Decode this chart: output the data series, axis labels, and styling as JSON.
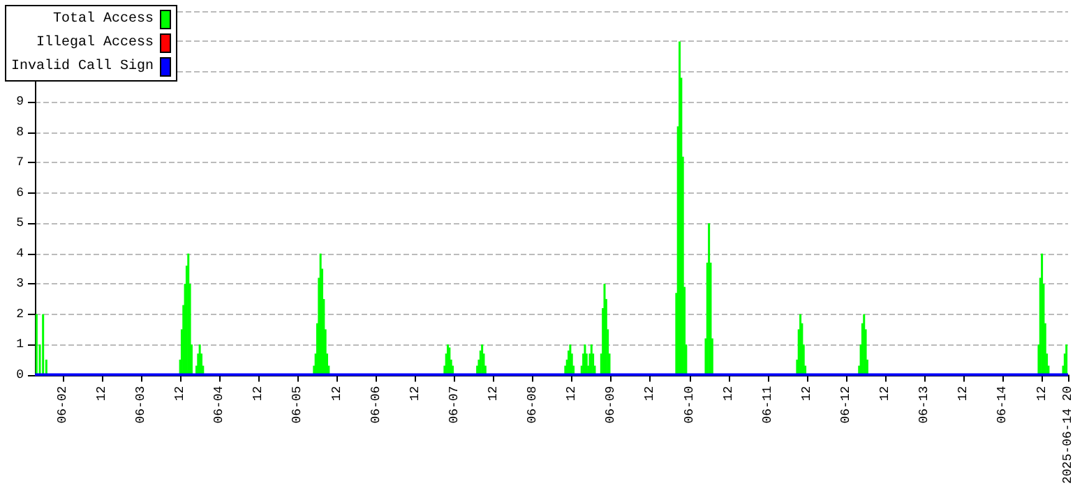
{
  "chart_data": {
    "type": "bar",
    "legend": "top left",
    "grid": "y",
    "marker": "none",
    "xlim": [
      "2025-06-01T15:30",
      "2025-06-14T20:00"
    ],
    "xticks": [
      {
        "value": "2025-06-02T00:00",
        "label": "06-02"
      },
      {
        "value": "2025-06-02T12:00",
        "label": "12"
      },
      {
        "value": "2025-06-03T00:00",
        "label": "06-03"
      },
      {
        "value": "2025-06-03T12:00",
        "label": "12"
      },
      {
        "value": "2025-06-04T00:00",
        "label": "06-04"
      },
      {
        "value": "2025-06-04T12:00",
        "label": "12"
      },
      {
        "value": "2025-06-05T00:00",
        "label": "06-05"
      },
      {
        "value": "2025-06-05T12:00",
        "label": "12"
      },
      {
        "value": "2025-06-06T00:00",
        "label": "06-06"
      },
      {
        "value": "2025-06-06T12:00",
        "label": "12"
      },
      {
        "value": "2025-06-07T00:00",
        "label": "06-07"
      },
      {
        "value": "2025-06-07T12:00",
        "label": "12"
      },
      {
        "value": "2025-06-08T00:00",
        "label": "06-08"
      },
      {
        "value": "2025-06-08T12:00",
        "label": "12"
      },
      {
        "value": "2025-06-09T00:00",
        "label": "06-09"
      },
      {
        "value": "2025-06-09T12:00",
        "label": "12"
      },
      {
        "value": "2025-06-10T00:00",
        "label": "06-10"
      },
      {
        "value": "2025-06-10T12:00",
        "label": "12"
      },
      {
        "value": "2025-06-11T00:00",
        "label": "06-11"
      },
      {
        "value": "2025-06-11T12:00",
        "label": "12"
      },
      {
        "value": "2025-06-12T00:00",
        "label": "06-12"
      },
      {
        "value": "2025-06-12T12:00",
        "label": "12"
      },
      {
        "value": "2025-06-13T00:00",
        "label": "06-13"
      },
      {
        "value": "2025-06-13T12:00",
        "label": "12"
      },
      {
        "value": "2025-06-14T00:00",
        "label": "06-14"
      },
      {
        "value": "2025-06-14T12:00",
        "label": "12"
      },
      {
        "value": "2025-06-14T20:00",
        "label": "2025-06-14 20"
      }
    ],
    "ylim": [
      0,
      12
    ],
    "yticks": [
      0,
      1,
      2,
      3,
      4,
      5,
      6,
      7,
      8,
      9,
      {
        "value": 10,
        "label": null
      },
      {
        "value": 11,
        "label": null
      },
      {
        "value": 12,
        "label": null
      }
    ],
    "series": [
      {
        "name": "Total Access",
        "color": "#00ff00",
        "x": [
          "2025-06-01T16:00",
          "2025-06-01T17:00",
          "2025-06-01T18:00",
          "2025-06-01T19:00",
          "2025-06-03T12:00",
          "2025-06-03T12:30",
          "2025-06-03T13:00",
          "2025-06-03T13:30",
          "2025-06-03T14:00",
          "2025-06-03T14:30",
          "2025-06-03T15:00",
          "2025-06-03T15:30",
          "2025-06-03T17:00",
          "2025-06-03T17:30",
          "2025-06-03T18:00",
          "2025-06-03T18:30",
          "2025-06-03T19:00",
          "2025-06-05T05:00",
          "2025-06-05T05:30",
          "2025-06-05T06:00",
          "2025-06-05T06:30",
          "2025-06-05T07:00",
          "2025-06-05T07:30",
          "2025-06-05T08:00",
          "2025-06-05T08:30",
          "2025-06-05T09:00",
          "2025-06-05T09:30",
          "2025-06-06T21:00",
          "2025-06-06T21:30",
          "2025-06-06T22:00",
          "2025-06-06T22:30",
          "2025-06-06T23:00",
          "2025-06-06T23:30",
          "2025-06-07T07:00",
          "2025-06-07T07:30",
          "2025-06-07T08:00",
          "2025-06-07T08:30",
          "2025-06-07T09:00",
          "2025-06-07T09:30",
          "2025-06-08T10:00",
          "2025-06-08T10:30",
          "2025-06-08T11:00",
          "2025-06-08T11:30",
          "2025-06-08T12:00",
          "2025-06-08T12:30",
          "2025-06-08T15:00",
          "2025-06-08T15:30",
          "2025-06-08T16:00",
          "2025-06-08T16:30",
          "2025-06-08T17:00",
          "2025-06-08T17:30",
          "2025-06-08T18:00",
          "2025-06-08T18:30",
          "2025-06-08T19:00",
          "2025-06-08T21:00",
          "2025-06-08T21:30",
          "2025-06-08T22:00",
          "2025-06-08T22:30",
          "2025-06-08T23:00",
          "2025-06-08T23:30",
          "2025-06-09T20:00",
          "2025-06-09T20:30",
          "2025-06-09T21:00",
          "2025-06-09T21:30",
          "2025-06-09T22:00",
          "2025-06-09T22:30",
          "2025-06-09T23:00",
          "2025-06-10T05:00",
          "2025-06-10T05:30",
          "2025-06-10T06:00",
          "2025-06-10T06:30",
          "2025-06-10T07:00",
          "2025-06-11T09:00",
          "2025-06-11T09:30",
          "2025-06-11T10:00",
          "2025-06-11T10:30",
          "2025-06-11T11:00",
          "2025-06-11T11:30",
          "2025-06-12T04:00",
          "2025-06-12T04:30",
          "2025-06-12T05:00",
          "2025-06-12T05:30",
          "2025-06-12T06:00",
          "2025-06-12T06:30",
          "2025-06-14T11:00",
          "2025-06-14T11:30",
          "2025-06-14T12:00",
          "2025-06-14T12:30",
          "2025-06-14T13:00",
          "2025-06-14T13:30",
          "2025-06-14T14:00",
          "2025-06-14T18:30",
          "2025-06-14T19:00",
          "2025-06-14T19:30"
        ],
        "values": [
          2,
          1,
          2,
          0.5,
          0.5,
          1.5,
          2.3,
          3,
          3.6,
          4,
          3,
          1,
          0.3,
          0.7,
          1,
          0.7,
          0.3,
          0.3,
          0.7,
          1.7,
          3.2,
          4,
          3.5,
          2.5,
          1.5,
          0.7,
          0.3,
          0.3,
          0.7,
          1,
          0.9,
          0.5,
          0.3,
          0.3,
          0.5,
          0.8,
          1,
          0.7,
          0.3,
          0.3,
          0.5,
          0.8,
          1,
          0.7,
          0.3,
          0.3,
          0.7,
          1,
          0.7,
          0.3,
          0.7,
          1,
          0.7,
          0.3,
          0.7,
          2.2,
          3,
          2.5,
          1.5,
          0.7,
          2.7,
          8.2,
          11,
          9.8,
          7.2,
          2.9,
          1,
          1.2,
          3.7,
          5,
          3.7,
          1.2,
          0.5,
          1.5,
          2,
          1.7,
          1,
          0.3,
          0.3,
          1,
          1.7,
          2,
          1.5,
          0.5,
          1,
          3.2,
          4,
          3,
          1.7,
          0.7,
          0.3,
          0.3,
          0.7,
          1
        ]
      },
      {
        "name": "Illegal Access",
        "color": "#ff0000"
      },
      {
        "name": "Invalid Call Sign",
        "type": "line",
        "color": "#0000ff",
        "x": [
          "2025-06-01T15:30",
          "2025-06-14T20:00"
        ],
        "values": [
          0,
          0
        ]
      }
    ]
  }
}
